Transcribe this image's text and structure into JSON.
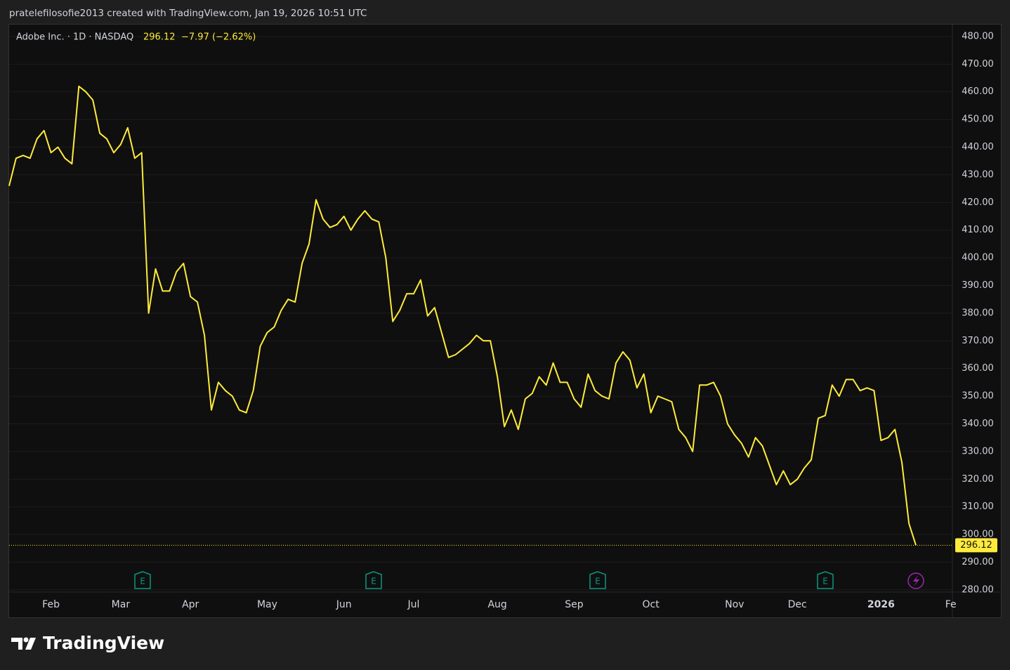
{
  "header": "pratelefilosofie2013 created with TradingView.com, Jan 19, 2026 10:51 UTC",
  "brand": "TradingView",
  "chart_data": {
    "type": "line",
    "legend": {
      "price": "296.12",
      "change": "−7.97 (−2.62%)"
    },
    "last_price": 296.12,
    "events": [
      {
        "label": "E"
      },
      {
        "label": "E"
      },
      {
        "label": "E"
      },
      {
        "label": "E"
      }
    ],
    "categories": [
      null,
      null,
      null,
      null,
      null,
      null,
      "Feb",
      null,
      null,
      null,
      null,
      null,
      null,
      null,
      null,
      null,
      "Mar",
      null,
      null,
      null,
      null,
      null,
      null,
      null,
      null,
      null,
      "Apr",
      null,
      null,
      null,
      null,
      null,
      null,
      null,
      null,
      null,
      null,
      "May",
      null,
      null,
      null,
      null,
      null,
      null,
      null,
      null,
      null,
      null,
      "Jun",
      null,
      null,
      null,
      null,
      null,
      null,
      null,
      null,
      null,
      "Jul",
      null,
      null,
      null,
      null,
      null,
      null,
      null,
      null,
      null,
      null,
      null,
      "Aug",
      null,
      null,
      null,
      null,
      null,
      null,
      null,
      null,
      null,
      null,
      "Sep",
      null,
      null,
      null,
      null,
      null,
      null,
      null,
      null,
      null,
      null,
      "Oct",
      null,
      null,
      null,
      null,
      null,
      null,
      null,
      null,
      null,
      null,
      null,
      "Nov",
      null,
      null,
      null,
      null,
      null,
      null,
      null,
      null,
      "Dec",
      null,
      null,
      null,
      null,
      null,
      null,
      null,
      null,
      null,
      null,
      null,
      "2026",
      null,
      null,
      null,
      null,
      null,
      null,
      null,
      null,
      null,
      "Fe"
    ],
    "series": [
      {
        "name": "Adobe Inc. · 1D · NASDAQ",
        "color": "#ffeb3b",
        "values": [
          426,
          436,
          437,
          436,
          443,
          446,
          438,
          440,
          436,
          434,
          462,
          460,
          457,
          445,
          443,
          438,
          441,
          447,
          436,
          438,
          380,
          396,
          388,
          388,
          395,
          398,
          386,
          384,
          372,
          345,
          355,
          352,
          350,
          345,
          344,
          352,
          368,
          373,
          375,
          381,
          385,
          384,
          398,
          405,
          421,
          414,
          411,
          412,
          415,
          410,
          414,
          417,
          414,
          413,
          400,
          377,
          381,
          387,
          387,
          392,
          379,
          382,
          373,
          364,
          365,
          367,
          369,
          372,
          370,
          370,
          357,
          339,
          345,
          338,
          349,
          351,
          357,
          354,
          362,
          355,
          355,
          349,
          346,
          358,
          352,
          350,
          349,
          362,
          366,
          363,
          353,
          358,
          344,
          350,
          349,
          348,
          338,
          335,
          330,
          354,
          354,
          355,
          350,
          340,
          336,
          333,
          328,
          335,
          332,
          325,
          318,
          323,
          318,
          320,
          324,
          327,
          342,
          343,
          354,
          350,
          356,
          356,
          352,
          353,
          352,
          334,
          335,
          338,
          326,
          304,
          296.12,
          null,
          null,
          null,
          null,
          null
        ]
      }
    ],
    "ylim": [
      279.2,
      484.3
    ],
    "yticks": [
      {
        "value": 280,
        "label": "280.00"
      },
      {
        "value": 290,
        "label": "290.00"
      },
      {
        "value": 300,
        "label": "300.00"
      },
      {
        "value": 310,
        "label": "310.00"
      },
      {
        "value": 320,
        "label": "320.00"
      },
      {
        "value": 330,
        "label": "330.00"
      },
      {
        "value": 340,
        "label": "340.00"
      },
      {
        "value": 350,
        "label": "350.00"
      },
      {
        "value": 360,
        "label": "360.00"
      },
      {
        "value": 370,
        "label": "370.00"
      },
      {
        "value": 380,
        "label": "380.00"
      },
      {
        "value": 390,
        "label": "390.00"
      },
      {
        "value": 400,
        "label": "400.00"
      },
      {
        "value": 410,
        "label": "410.00"
      },
      {
        "value": 420,
        "label": "420.00"
      },
      {
        "value": 430,
        "label": "430.00"
      },
      {
        "value": 440,
        "label": "440.00"
      },
      {
        "value": 450,
        "label": "450.00"
      },
      {
        "value": 460,
        "label": "460.00"
      },
      {
        "value": 470,
        "label": "470.00"
      },
      {
        "value": 480,
        "label": "480.00"
      }
    ],
    "grid": true
  }
}
